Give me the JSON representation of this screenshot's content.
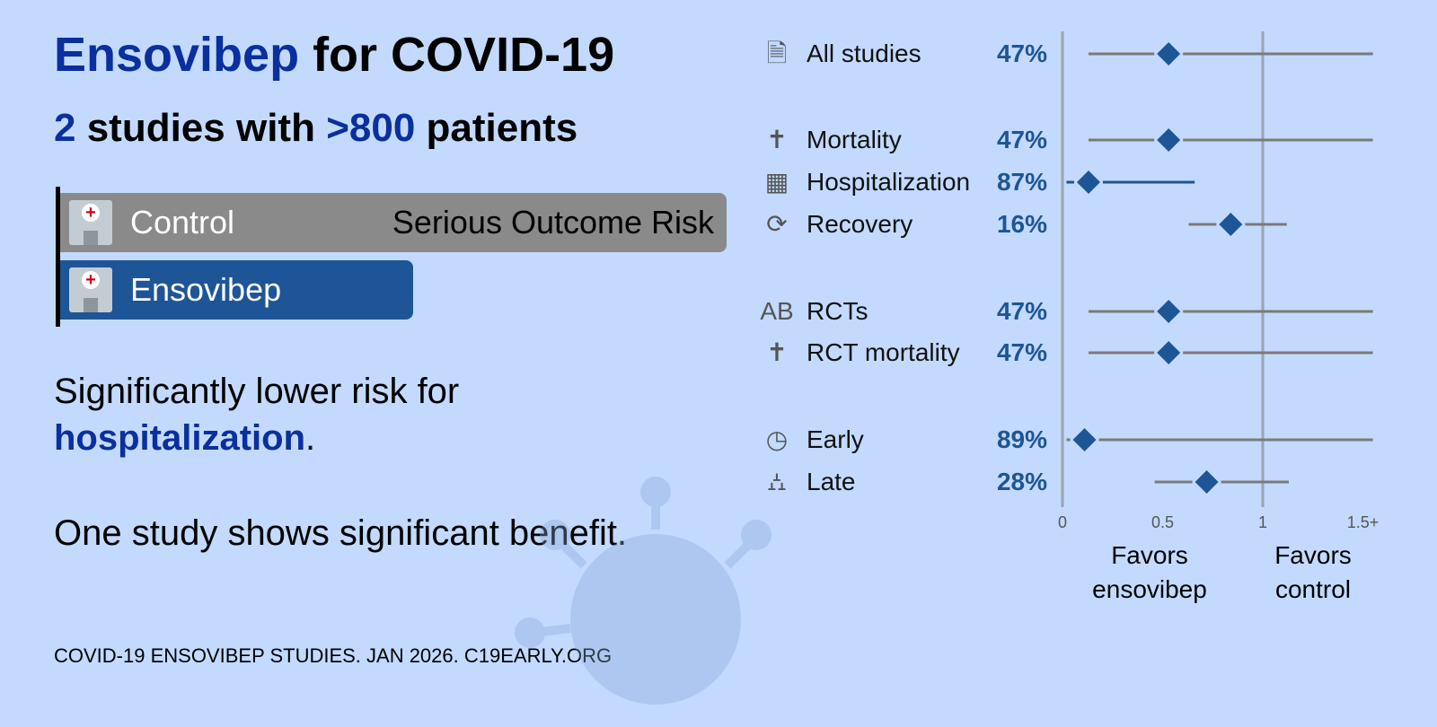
{
  "title": {
    "drug": "Ensovibep",
    "rest": " for COVID-19"
  },
  "subtitle": {
    "count": "2",
    "mid": " studies with ",
    "patients": ">800",
    "end": " patients"
  },
  "bars": {
    "control_label": "Control",
    "risk_label": "Serious Outcome Risk",
    "treatment_label": "Ensovibep",
    "treatment_relative": 0.53,
    "icon": "hospital-icon"
  },
  "summary1": {
    "text": "Significantly lower risk for ",
    "highlight": "hospitalization",
    "end": "."
  },
  "summary2": "One study shows significant benefit.",
  "footer": "COVID-19 ENSOVIBEP STUDIES. JAN 2026. C19EARLY.ORG",
  "colors": {
    "accent": "#0a2f9e",
    "marker": "#1e5596",
    "background": "#c3dafe",
    "control_bar": "#8a8a8a",
    "ci_line": "#7a7a7a"
  },
  "chart_data": {
    "type": "forest",
    "xlim": [
      0,
      1.55
    ],
    "ticks": [
      "0",
      "0.5",
      "1",
      "1.5+"
    ],
    "tick_values": [
      0,
      0.5,
      1,
      1.5
    ],
    "reference_line": 1,
    "xlabel_left": "Favors ensovibep",
    "xlabel_right": "Favors control",
    "rows": [
      {
        "label": "All studies",
        "icon": "study-icon",
        "pct": "47%",
        "rr": 0.53,
        "lo": 0.13,
        "hi": 1.6,
        "sig": false
      },
      {
        "label": "Mortality",
        "icon": "tombstone-icon",
        "pct": "47%",
        "rr": 0.53,
        "lo": 0.13,
        "hi": 1.6,
        "sig": false
      },
      {
        "label": "Hospitalization",
        "icon": "hospital-icon",
        "pct": "87%",
        "rr": 0.13,
        "lo": 0.02,
        "hi": 0.66,
        "sig": true
      },
      {
        "label": "Recovery",
        "icon": "recovery-icon",
        "pct": "16%",
        "rr": 0.84,
        "lo": 0.63,
        "hi": 1.12,
        "sig": false
      },
      {
        "label": "RCTs",
        "icon": "rct-icon",
        "pct": "47%",
        "rr": 0.53,
        "lo": 0.13,
        "hi": 1.6,
        "sig": false
      },
      {
        "label": "RCT mortality",
        "icon": "tombstone-icon",
        "pct": "47%",
        "rr": 0.53,
        "lo": 0.13,
        "hi": 1.6,
        "sig": false
      },
      {
        "label": "Early",
        "icon": "clock-icon",
        "pct": "89%",
        "rr": 0.11,
        "lo": 0.02,
        "hi": 1.6,
        "sig": false
      },
      {
        "label": "Late",
        "icon": "hospital-bed-icon",
        "pct": "28%",
        "rr": 0.72,
        "lo": 0.46,
        "hi": 1.13,
        "sig": false
      }
    ]
  }
}
